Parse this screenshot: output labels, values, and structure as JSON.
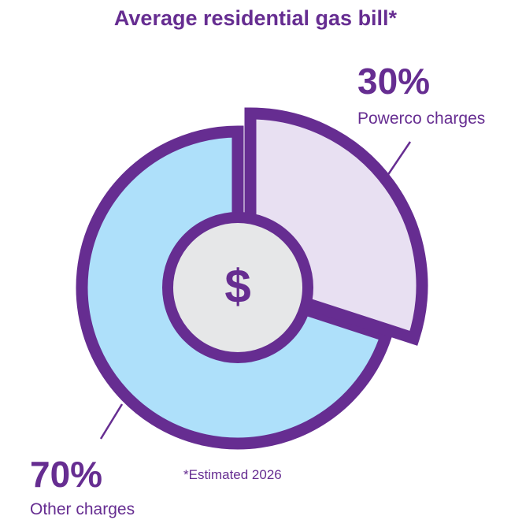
{
  "chart_data": {
    "type": "pie",
    "title": "Average residential gas bill*",
    "center_symbol": "$",
    "footnote": "*Estimated 2026",
    "slices": [
      {
        "label": "Powerco charges",
        "value": 30,
        "value_label": "30%",
        "color": "#e8e0f2",
        "exploded": true
      },
      {
        "label": "Other charges",
        "value": 70,
        "value_label": "70%",
        "color": "#aee0fa",
        "exploded": false
      }
    ],
    "colors": {
      "outline": "#662d91",
      "hub": "#e6e7e8",
      "text": "#662d91"
    }
  }
}
